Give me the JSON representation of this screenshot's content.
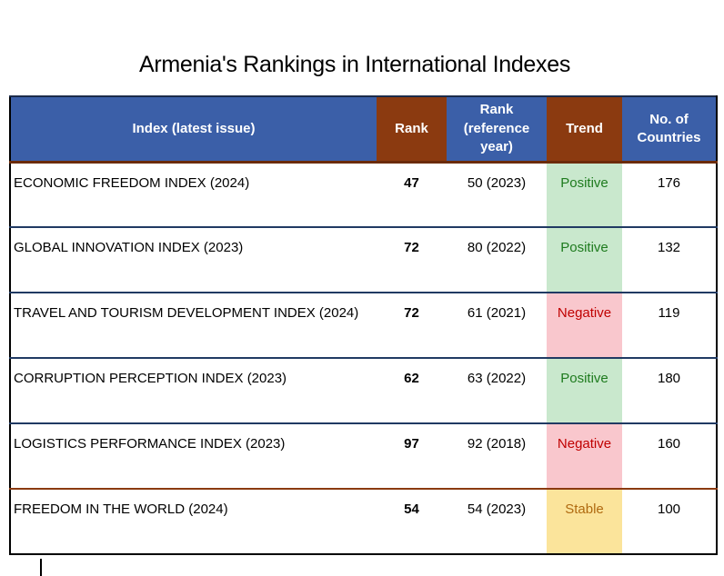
{
  "title": "Armenia's Rankings in International Indexes",
  "table": {
    "headers": {
      "index": "Index (latest issue)",
      "rank": "Rank",
      "rank_reference": "Rank (reference year)",
      "trend": "Trend",
      "countries": "No. of Countries"
    },
    "rows": [
      {
        "index": "ECONOMIC FREEDOM INDEX (2024)",
        "rank": "47",
        "rank_reference": "50 (2023)",
        "trend": "Positive",
        "trend_style": "positive",
        "countries": "176"
      },
      {
        "index": "GLOBAL INNOVATION INDEX (2023)",
        "rank": "72",
        "rank_reference": "80 (2022)",
        "trend": "Positive",
        "trend_style": "positive",
        "countries": "132"
      },
      {
        "index": "TRAVEL AND TOURISM DEVELOPMENT INDEX (2024)",
        "rank": "72",
        "rank_reference": "61 (2021)",
        "trend": "Negative",
        "trend_style": "negative",
        "countries": "119"
      },
      {
        "index": "CORRUPTION PERCEPTION INDEX (2023)",
        "rank": "62",
        "rank_reference": "63 (2022)",
        "trend": "Positive",
        "trend_style": "positive",
        "countries": "180"
      },
      {
        "index": "LOGISTICS PERFORMANCE INDEX (2023)",
        "rank": "97",
        "rank_reference": "92 (2018)",
        "trend": "Negative",
        "trend_style": "negative",
        "countries": "160"
      },
      {
        "index": "FREEDOM IN THE WORLD (2024)",
        "rank": "54",
        "rank_reference": "54 (2023)",
        "trend": "Stable",
        "trend_style": "stable",
        "countries": "100"
      }
    ]
  },
  "colors": {
    "header_blue": "#3b5fa8",
    "header_brown": "#8b3a10",
    "header_text": "#ffffff",
    "header_divider": "#6b2b09",
    "row_separator": "#203a63",
    "positive_bg": "#c9e8cd",
    "positive_text": "#1e7b1e",
    "negative_bg": "#f9c7cd",
    "negative_text": "#c00000",
    "stable_bg": "#fbe49b",
    "stable_text": "#b06a10"
  },
  "chart_data": {
    "type": "table",
    "title": "Armenia's Rankings in International Indexes",
    "columns": [
      "Index (latest issue)",
      "Rank",
      "Rank (reference year)",
      "Trend",
      "No. of Countries"
    ],
    "rows": [
      [
        "ECONOMIC FREEDOM INDEX (2024)",
        47,
        "50 (2023)",
        "Positive",
        176
      ],
      [
        "GLOBAL INNOVATION INDEX (2023)",
        72,
        "80 (2022)",
        "Positive",
        132
      ],
      [
        "TRAVEL AND TOURISM DEVELOPMENT INDEX (2024)",
        72,
        "61 (2021)",
        "Negative",
        119
      ],
      [
        "CORRUPTION PERCEPTION INDEX (2023)",
        62,
        "63 (2022)",
        "Positive",
        180
      ],
      [
        "LOGISTICS PERFORMANCE INDEX (2023)",
        97,
        "92 (2018)",
        "Negative",
        160
      ],
      [
        "FREEDOM IN THE WORLD (2024)",
        54,
        "54 (2023)",
        "Stable",
        100
      ]
    ]
  }
}
